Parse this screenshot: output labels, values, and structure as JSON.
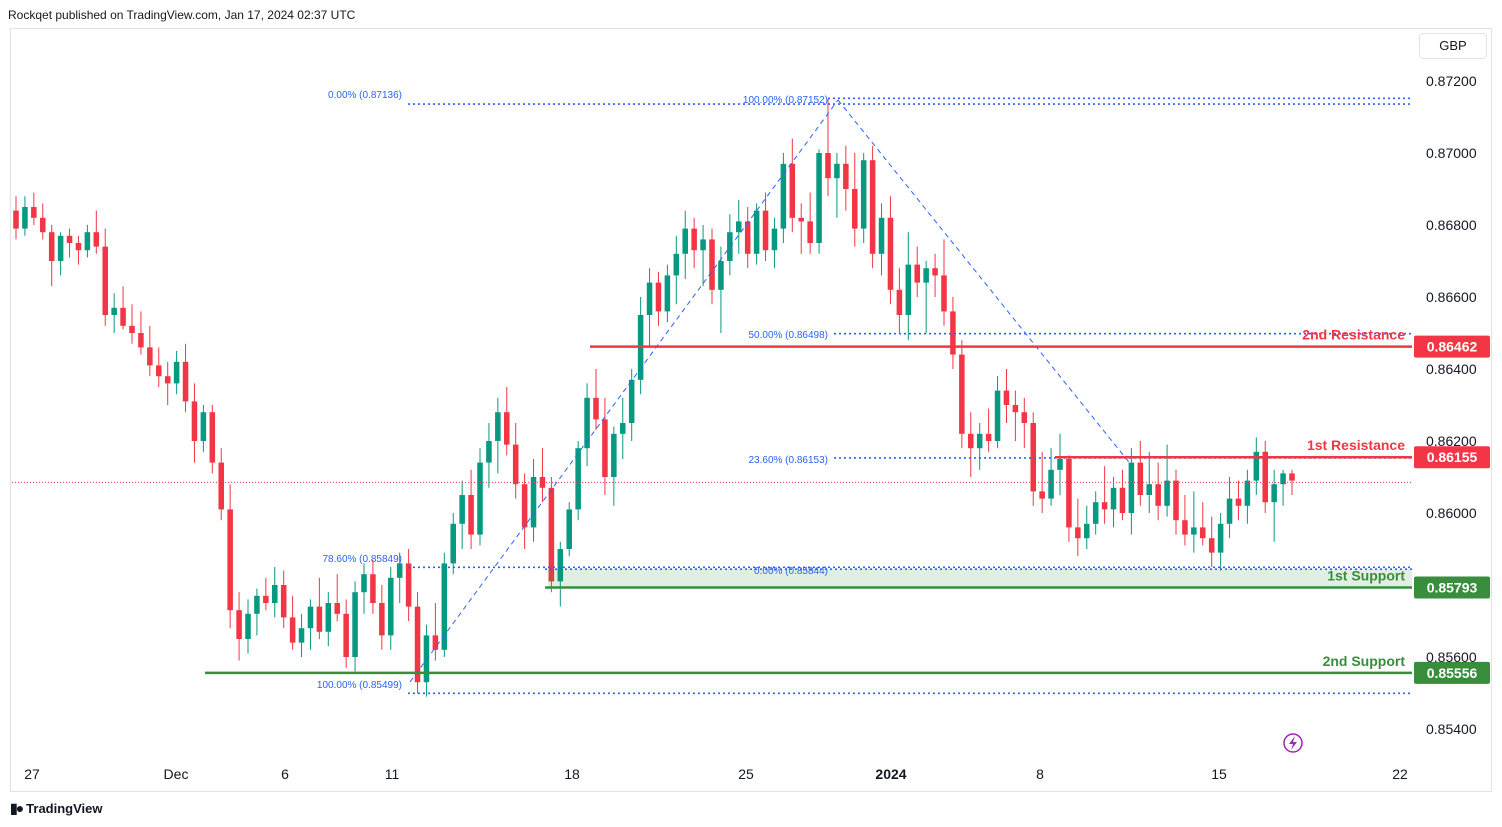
{
  "header": {
    "publisher": "Rockqet published on TradingView.com, Jan 17, 2024 02:37 UTC"
  },
  "footer": {
    "brand": "TradingView",
    "logo_icon": "tradingview-logo-icon"
  },
  "toolbar": {
    "currency": "GBP"
  },
  "colors": {
    "up": "#089981",
    "down": "#f23645",
    "resistance": "#f23645",
    "support": "#388e3c",
    "fib": "#2962ff",
    "grid": "#f0f3fa",
    "axis_text": "#131722"
  },
  "chart_data": {
    "type": "candlestick",
    "symbol_currency": "GBP",
    "x_tick_labels": [
      "27",
      "Dec",
      "6",
      "11",
      "18",
      "25",
      "2024",
      "8",
      "15",
      "22"
    ],
    "y_tick_labels": [
      "0.87200",
      "0.87000",
      "0.86800",
      "0.86600",
      "0.86400",
      "0.86200",
      "0.86000",
      "0.85600",
      "0.85400"
    ],
    "ylim": [
      0.8534,
      0.873
    ],
    "current_price": 0.86085,
    "levels": [
      {
        "label": "2nd Resistance",
        "value": 0.86462,
        "price_label": "0.86462",
        "kind": "resistance"
      },
      {
        "label": "1st Resistance",
        "value": 0.86155,
        "price_label": "0.86155",
        "kind": "resistance"
      },
      {
        "label": "1st Support",
        "value": 0.85793,
        "price_label": "0.85793",
        "kind": "support"
      },
      {
        "label": "2nd Support",
        "value": 0.85556,
        "price_label": "0.85556",
        "kind": "support"
      }
    ],
    "fib_labels": [
      {
        "text": "0.00% (0.87136)",
        "value": 0.87136
      },
      {
        "text": "100.00% (0.87152)",
        "value": 0.87152
      },
      {
        "text": "50.00% (0.86498)",
        "value": 0.86498
      },
      {
        "text": "23.60% (0.86153)",
        "value": 0.86153
      },
      {
        "text": "78.60% (0.85849)",
        "value": 0.85849
      },
      {
        "text": "0.00% (0.85844)",
        "value": 0.85844
      },
      {
        "text": "100.00% (0.85499)",
        "value": 0.85499
      }
    ],
    "candles": [
      [
        0.8684,
        0.8688,
        0.8676,
        0.8679
      ],
      [
        0.8679,
        0.8688,
        0.8677,
        0.8685
      ],
      [
        0.8685,
        0.8689,
        0.868,
        0.8682
      ],
      [
        0.8682,
        0.8686,
        0.8676,
        0.8678
      ],
      [
        0.8678,
        0.868,
        0.8663,
        0.867
      ],
      [
        0.867,
        0.8678,
        0.8666,
        0.8677
      ],
      [
        0.8677,
        0.8679,
        0.8671,
        0.8675
      ],
      [
        0.8675,
        0.8677,
        0.8669,
        0.8673
      ],
      [
        0.8673,
        0.868,
        0.8671,
        0.8678
      ],
      [
        0.8678,
        0.8684,
        0.8672,
        0.8674
      ],
      [
        0.8674,
        0.8679,
        0.8652,
        0.8655
      ],
      [
        0.8655,
        0.8661,
        0.865,
        0.8657
      ],
      [
        0.8657,
        0.8663,
        0.8651,
        0.8652
      ],
      [
        0.8652,
        0.8658,
        0.8647,
        0.865
      ],
      [
        0.865,
        0.8656,
        0.8644,
        0.8646
      ],
      [
        0.8646,
        0.8652,
        0.8638,
        0.8641
      ],
      [
        0.8641,
        0.8646,
        0.8635,
        0.8638
      ],
      [
        0.8638,
        0.8642,
        0.863,
        0.8636
      ],
      [
        0.8636,
        0.8645,
        0.8633,
        0.8642
      ],
      [
        0.8642,
        0.8647,
        0.8628,
        0.8631
      ],
      [
        0.8631,
        0.8636,
        0.8614,
        0.862
      ],
      [
        0.862,
        0.863,
        0.8617,
        0.8628
      ],
      [
        0.8628,
        0.863,
        0.8611,
        0.8614
      ],
      [
        0.8614,
        0.8618,
        0.8598,
        0.8601
      ],
      [
        0.8601,
        0.8608,
        0.8568,
        0.8573
      ],
      [
        0.8573,
        0.8578,
        0.8559,
        0.8565
      ],
      [
        0.8565,
        0.8576,
        0.8561,
        0.8572
      ],
      [
        0.8572,
        0.8579,
        0.8566,
        0.8577
      ],
      [
        0.8577,
        0.8582,
        0.8573,
        0.8575
      ],
      [
        0.8575,
        0.8585,
        0.8571,
        0.858
      ],
      [
        0.858,
        0.8584,
        0.8568,
        0.8571
      ],
      [
        0.8571,
        0.8577,
        0.8562,
        0.8564
      ],
      [
        0.8564,
        0.8572,
        0.856,
        0.8568
      ],
      [
        0.8568,
        0.8576,
        0.8562,
        0.8574
      ],
      [
        0.8574,
        0.8582,
        0.8565,
        0.8567
      ],
      [
        0.8567,
        0.8578,
        0.8563,
        0.8575
      ],
      [
        0.8575,
        0.8583,
        0.857,
        0.8572
      ],
      [
        0.8572,
        0.8576,
        0.8557,
        0.856
      ],
      [
        0.856,
        0.8581,
        0.8556,
        0.8578
      ],
      [
        0.8578,
        0.8586,
        0.8572,
        0.8583
      ],
      [
        0.8583,
        0.8587,
        0.8572,
        0.8575
      ],
      [
        0.8575,
        0.858,
        0.8562,
        0.8566
      ],
      [
        0.8566,
        0.8585,
        0.8562,
        0.8582
      ],
      [
        0.8582,
        0.8589,
        0.8575,
        0.8586
      ],
      [
        0.8586,
        0.859,
        0.857,
        0.8574
      ],
      [
        0.8574,
        0.8578,
        0.855,
        0.8553
      ],
      [
        0.8553,
        0.8569,
        0.8549,
        0.8566
      ],
      [
        0.8566,
        0.8575,
        0.8559,
        0.8562
      ],
      [
        0.8562,
        0.8589,
        0.856,
        0.8586
      ],
      [
        0.8586,
        0.86,
        0.8583,
        0.8597
      ],
      [
        0.8597,
        0.8609,
        0.859,
        0.8605
      ],
      [
        0.8605,
        0.8612,
        0.859,
        0.8594
      ],
      [
        0.8594,
        0.8618,
        0.8591,
        0.8614
      ],
      [
        0.8614,
        0.8625,
        0.8607,
        0.862
      ],
      [
        0.862,
        0.8632,
        0.8611,
        0.8628
      ],
      [
        0.8628,
        0.8635,
        0.8616,
        0.8619
      ],
      [
        0.8619,
        0.8625,
        0.8604,
        0.8608
      ],
      [
        0.8608,
        0.8611,
        0.859,
        0.8596
      ],
      [
        0.8596,
        0.8615,
        0.8592,
        0.861
      ],
      [
        0.861,
        0.8618,
        0.8603,
        0.8607
      ],
      [
        0.8607,
        0.861,
        0.8578,
        0.8581
      ],
      [
        0.8581,
        0.8592,
        0.8574,
        0.859
      ],
      [
        0.859,
        0.8603,
        0.8588,
        0.8601
      ],
      [
        0.8601,
        0.862,
        0.8598,
        0.8618
      ],
      [
        0.8618,
        0.8636,
        0.8613,
        0.8632
      ],
      [
        0.8632,
        0.864,
        0.8623,
        0.8626
      ],
      [
        0.8626,
        0.8632,
        0.8605,
        0.861
      ],
      [
        0.861,
        0.8624,
        0.8602,
        0.8622
      ],
      [
        0.8622,
        0.8632,
        0.8615,
        0.8625
      ],
      [
        0.8625,
        0.864,
        0.862,
        0.8637
      ],
      [
        0.8637,
        0.866,
        0.8633,
        0.8655
      ],
      [
        0.8655,
        0.8668,
        0.8646,
        0.8664
      ],
      [
        0.8664,
        0.8667,
        0.8652,
        0.8656
      ],
      [
        0.8656,
        0.8669,
        0.8653,
        0.8666
      ],
      [
        0.8666,
        0.8677,
        0.8658,
        0.8672
      ],
      [
        0.8672,
        0.8684,
        0.8665,
        0.8679
      ],
      [
        0.8679,
        0.8682,
        0.8668,
        0.8673
      ],
      [
        0.8673,
        0.868,
        0.8663,
        0.8676
      ],
      [
        0.8676,
        0.8679,
        0.8658,
        0.8662
      ],
      [
        0.8662,
        0.8674,
        0.865,
        0.867
      ],
      [
        0.867,
        0.8683,
        0.8666,
        0.8678
      ],
      [
        0.8678,
        0.8687,
        0.8672,
        0.8681
      ],
      [
        0.8681,
        0.8685,
        0.8668,
        0.8672
      ],
      [
        0.8672,
        0.8686,
        0.8669,
        0.8684
      ],
      [
        0.8684,
        0.8689,
        0.867,
        0.8673
      ],
      [
        0.8673,
        0.8682,
        0.8668,
        0.8679
      ],
      [
        0.8679,
        0.87,
        0.8675,
        0.8697
      ],
      [
        0.8697,
        0.8704,
        0.8678,
        0.8682
      ],
      [
        0.8682,
        0.8686,
        0.8672,
        0.8681
      ],
      [
        0.8681,
        0.8689,
        0.8672,
        0.8675
      ],
      [
        0.8675,
        0.8701,
        0.8672,
        0.87
      ],
      [
        0.87,
        0.8715,
        0.8688,
        0.8693
      ],
      [
        0.8693,
        0.87,
        0.8682,
        0.8697
      ],
      [
        0.8697,
        0.8702,
        0.8684,
        0.869
      ],
      [
        0.869,
        0.87,
        0.8674,
        0.8679
      ],
      [
        0.8679,
        0.87,
        0.8675,
        0.8698
      ],
      [
        0.8698,
        0.8702,
        0.8668,
        0.8672
      ],
      [
        0.8672,
        0.8686,
        0.8666,
        0.8682
      ],
      [
        0.8682,
        0.8688,
        0.8658,
        0.8662
      ],
      [
        0.8662,
        0.8668,
        0.865,
        0.8655
      ],
      [
        0.8655,
        0.8678,
        0.8648,
        0.8669
      ],
      [
        0.8669,
        0.8674,
        0.866,
        0.8664
      ],
      [
        0.8664,
        0.867,
        0.865,
        0.8668
      ],
      [
        0.8668,
        0.8672,
        0.866,
        0.8666
      ],
      [
        0.8666,
        0.8676,
        0.8652,
        0.8656
      ],
      [
        0.8656,
        0.866,
        0.864,
        0.8644
      ],
      [
        0.8644,
        0.8648,
        0.8618,
        0.8622
      ],
      [
        0.8622,
        0.8628,
        0.861,
        0.8618
      ],
      [
        0.8618,
        0.8625,
        0.8612,
        0.8622
      ],
      [
        0.8622,
        0.8629,
        0.8617,
        0.862
      ],
      [
        0.862,
        0.8638,
        0.8618,
        0.8634
      ],
      [
        0.8634,
        0.864,
        0.8625,
        0.863
      ],
      [
        0.863,
        0.8634,
        0.862,
        0.8628
      ],
      [
        0.8628,
        0.8632,
        0.8618,
        0.8625
      ],
      [
        0.8625,
        0.8628,
        0.8602,
        0.8606
      ],
      [
        0.8606,
        0.8617,
        0.86,
        0.8604
      ],
      [
        0.8604,
        0.8618,
        0.8602,
        0.8612
      ],
      [
        0.8612,
        0.8622,
        0.8605,
        0.8615
      ],
      [
        0.8615,
        0.8616,
        0.8592,
        0.8596
      ],
      [
        0.8596,
        0.8604,
        0.8588,
        0.8593
      ],
      [
        0.8593,
        0.8602,
        0.859,
        0.8597
      ],
      [
        0.8597,
        0.8606,
        0.8594,
        0.8603
      ],
      [
        0.8603,
        0.8613,
        0.8597,
        0.8601
      ],
      [
        0.8601,
        0.861,
        0.8596,
        0.8607
      ],
      [
        0.8607,
        0.8612,
        0.8598,
        0.86
      ],
      [
        0.86,
        0.8618,
        0.8594,
        0.8614
      ],
      [
        0.8614,
        0.862,
        0.8602,
        0.8605
      ],
      [
        0.8605,
        0.8617,
        0.86,
        0.8608
      ],
      [
        0.8608,
        0.8614,
        0.8598,
        0.8602
      ],
      [
        0.8602,
        0.8619,
        0.8599,
        0.8609
      ],
      [
        0.8609,
        0.8612,
        0.8594,
        0.8598
      ],
      [
        0.8598,
        0.8605,
        0.8591,
        0.8594
      ],
      [
        0.8594,
        0.8606,
        0.8589,
        0.8596
      ],
      [
        0.8596,
        0.8603,
        0.8591,
        0.8593
      ],
      [
        0.8593,
        0.8599,
        0.8585,
        0.8589
      ],
      [
        0.8589,
        0.86,
        0.8584,
        0.8597
      ],
      [
        0.8597,
        0.861,
        0.8593,
        0.8604
      ],
      [
        0.8604,
        0.8609,
        0.8598,
        0.8602
      ],
      [
        0.8602,
        0.8612,
        0.8597,
        0.8609
      ],
      [
        0.8609,
        0.8621,
        0.8605,
        0.8617
      ],
      [
        0.8617,
        0.862,
        0.86,
        0.8603
      ],
      [
        0.8603,
        0.8612,
        0.8592,
        0.8608
      ],
      [
        0.8608,
        0.8612,
        0.8602,
        0.8611
      ],
      [
        0.8611,
        0.8612,
        0.8605,
        0.8609
      ]
    ],
    "grid": false,
    "legend": "none"
  }
}
